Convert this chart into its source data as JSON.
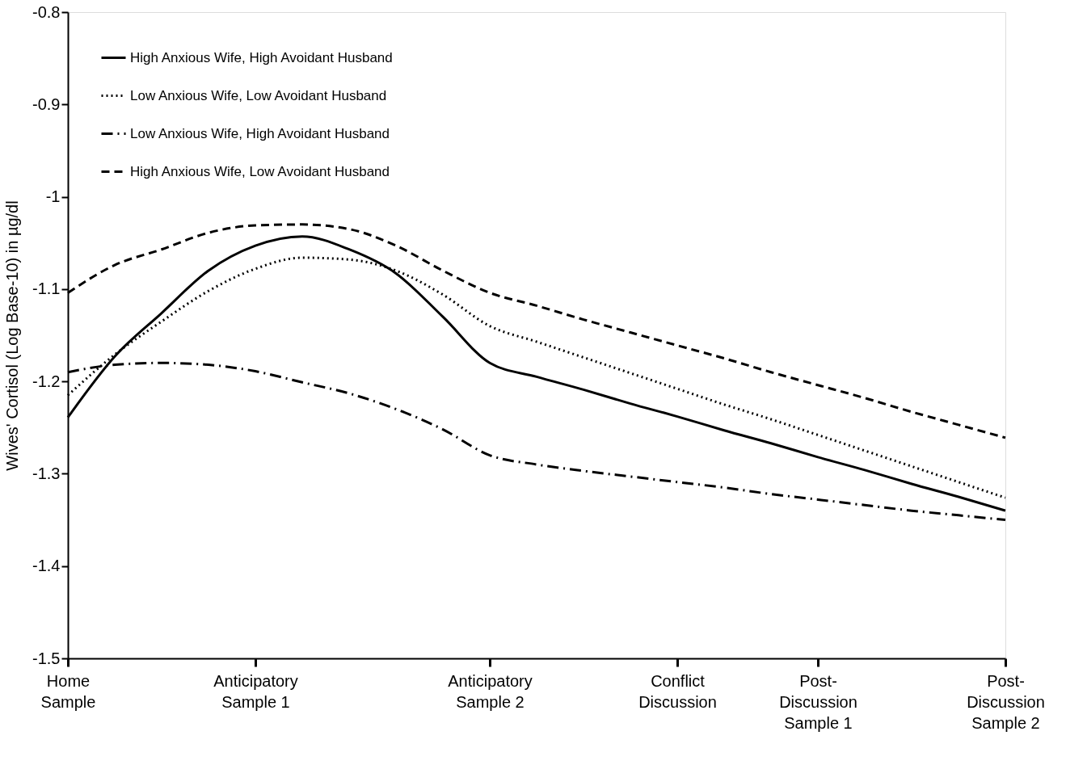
{
  "chart_data": {
    "type": "line",
    "ylabel": "Wives' Cortisol (Log Base-10) in µg/dl",
    "categories": [
      "Home\nSample",
      null,
      null,
      null,
      "Anticipatory\nSample 1",
      null,
      null,
      null,
      null,
      "Anticipatory\nSample 2",
      null,
      null,
      null,
      "Conflict\nDiscussion",
      null,
      null,
      "Post-\nDiscussion\nSample 1",
      null,
      null,
      null,
      "Post-\nDiscussion\nSample 2"
    ],
    "ylim": [
      -1.5,
      -0.8
    ],
    "yticks": [
      -1.5,
      -1.4,
      -1.3,
      -1.2,
      -1.1,
      -1,
      -0.9,
      -0.8
    ],
    "legend": "top left",
    "series": [
      {
        "name": "High Anxious Wife, High Avoidant Husband",
        "color": "#000000",
        "line_style": "solid",
        "values": [
          -1.239,
          -1.173,
          -1.126,
          -1.08,
          -1.053,
          -1.043,
          -1.057,
          -1.083,
          -1.13,
          -1.18,
          -1.195,
          -1.209,
          -1.224,
          -1.238,
          -1.253,
          -1.267,
          -1.282,
          -1.296,
          -1.311,
          -1.325,
          -1.34
        ]
      },
      {
        "name": "Low Anxious Wife, Low Avoidant Husband",
        "color": "#000000",
        "line_style": "dotted",
        "values": [
          -1.215,
          -1.171,
          -1.135,
          -1.102,
          -1.078,
          -1.066,
          -1.068,
          -1.08,
          -1.106,
          -1.14,
          -1.157,
          -1.174,
          -1.191,
          -1.208,
          -1.225,
          -1.241,
          -1.258,
          -1.275,
          -1.292,
          -1.309,
          -1.326
        ]
      },
      {
        "name": "Low Anxious Wife, High Avoidant Husband",
        "color": "#000000",
        "line_style": "dashdot",
        "values": [
          -1.19,
          -1.182,
          -1.18,
          -1.182,
          -1.189,
          -1.201,
          -1.213,
          -1.23,
          -1.252,
          -1.28,
          -1.29,
          -1.297,
          -1.303,
          -1.309,
          -1.315,
          -1.322,
          -1.328,
          -1.334,
          -1.34,
          -1.345,
          -1.35
        ]
      },
      {
        "name": "High Anxious Wife, Low Avoidant Husband",
        "color": "#000000",
        "line_style": "dashed",
        "values": [
          -1.104,
          -1.074,
          -1.057,
          -1.039,
          -1.031,
          -1.03,
          -1.035,
          -1.053,
          -1.08,
          -1.104,
          -1.118,
          -1.133,
          -1.147,
          -1.161,
          -1.175,
          -1.19,
          -1.204,
          -1.218,
          -1.233,
          -1.247,
          -1.261
        ]
      }
    ]
  }
}
